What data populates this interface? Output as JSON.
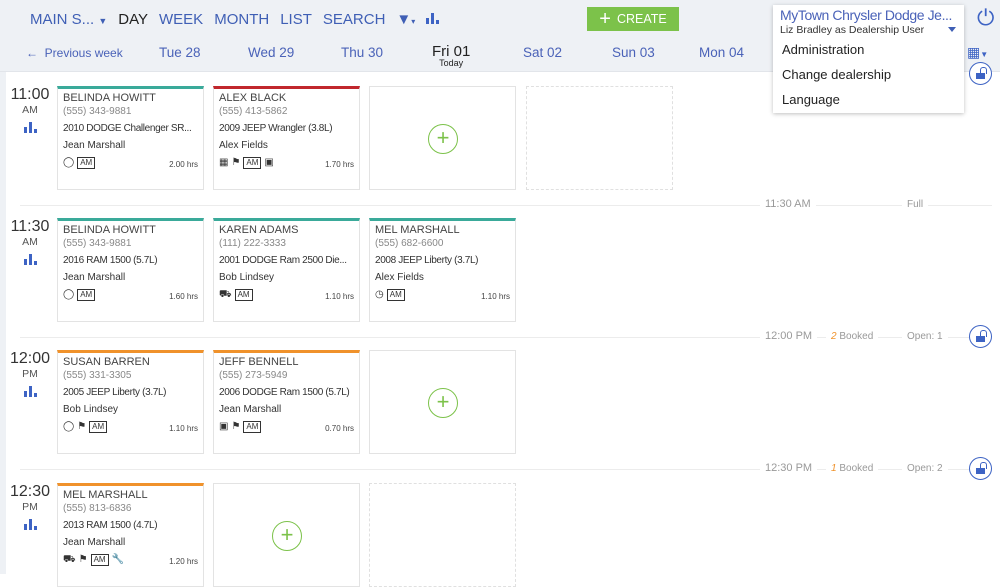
{
  "nav": {
    "location": "MAIN S...",
    "views": [
      "DAY",
      "WEEK",
      "MONTH",
      "LIST",
      "SEARCH"
    ],
    "active": "DAY",
    "create": "CREATE"
  },
  "week": {
    "prev": "Previous week",
    "days": [
      "Tue 28",
      "Wed 29",
      "Thu 30",
      "Sat 02",
      "Sun 03",
      "Mon 04"
    ],
    "today_day": "Fri 01",
    "today_label": "Today"
  },
  "account": {
    "dealership": "MyTown Chrysler Dodge Je...",
    "user": "Liz Bradley as Dealership User",
    "menu": [
      "Administration",
      "Change dealership",
      "Language"
    ]
  },
  "colors": {
    "accent": "#3f5fb5",
    "create": "#7cc24a",
    "teal": "#3aaa9a",
    "red": "#c1272d",
    "orange": "#f0922b"
  },
  "rows": [
    {
      "time": "11:00",
      "ampm": "AM"
    },
    {
      "time": "11:30",
      "ampm": "AM"
    },
    {
      "time": "12:00",
      "ampm": "PM"
    },
    {
      "time": "12:30",
      "ampm": "PM"
    }
  ],
  "separators": [
    {
      "time": "11:30 AM",
      "booked": "",
      "booked_label": "",
      "status": "Full"
    },
    {
      "time": "12:00 PM",
      "booked": "2",
      "booked_label": "Booked",
      "status": "Open: 1"
    },
    {
      "time": "12:30 PM",
      "booked": "1",
      "booked_label": "Booked",
      "status": "Open: 2"
    }
  ],
  "appointments": [
    {
      "name": "BELINDA HOWITT",
      "phone": "(555) 343-9881",
      "vehicle": "2010 DODGE Challenger SR...",
      "advisor": "Jean Marshall",
      "hours": "2.00 hrs",
      "tag": "AM",
      "icons": [
        "steering-wheel"
      ]
    },
    {
      "name": "ALEX BLACK",
      "phone": "(555) 413-5862",
      "vehicle": "2009 JEEP Wrangler (3.8L)",
      "advisor": "Alex Fields",
      "hours": "1.70 hrs",
      "tag": "AM",
      "icons": [
        "bus",
        "flag",
        "calendar"
      ]
    },
    {
      "name": "BELINDA HOWITT",
      "phone": "(555) 343-9881",
      "vehicle": "2016 RAM 1500 (5.7L)",
      "advisor": "Jean Marshall",
      "hours": "1.60 hrs",
      "tag": "AM",
      "icons": [
        "steering-wheel"
      ]
    },
    {
      "name": "KAREN ADAMS",
      "phone": "(111) 222-3333",
      "vehicle": "2001 DODGE Ram 2500 Die...",
      "advisor": "Bob Lindsey",
      "hours": "1.10 hrs",
      "tag": "AM",
      "icons": [
        "tow-truck"
      ]
    },
    {
      "name": "MEL MARSHALL",
      "phone": "(555) 682-6600",
      "vehicle": "2008 JEEP Liberty (3.7L)",
      "advisor": "Alex Fields",
      "hours": "1.10 hrs",
      "tag": "AM",
      "icons": [
        "clock"
      ]
    },
    {
      "name": "SUSAN BARREN",
      "phone": "(555) 331-3305",
      "vehicle": "2005 JEEP Liberty (3.7L)",
      "advisor": "Bob Lindsey",
      "hours": "1.10 hrs",
      "tag": "AM",
      "icons": [
        "steering-wheel",
        "flag"
      ]
    },
    {
      "name": "JEFF BENNELL",
      "phone": "(555) 273-5949",
      "vehicle": "2006 DODGE Ram 1500 (5.7L)",
      "advisor": "Jean Marshall",
      "hours": "0.70 hrs",
      "tag": "AM",
      "icons": [
        "briefcase",
        "flag"
      ]
    },
    {
      "name": "MEL MARSHALL",
      "phone": "(555) 813-6836",
      "vehicle": "2013 RAM 1500 (4.7L)",
      "advisor": "Jean Marshall",
      "hours": "1.20 hrs",
      "tag": "AM",
      "icons": [
        "car-key",
        "flag",
        "wrench"
      ]
    }
  ]
}
